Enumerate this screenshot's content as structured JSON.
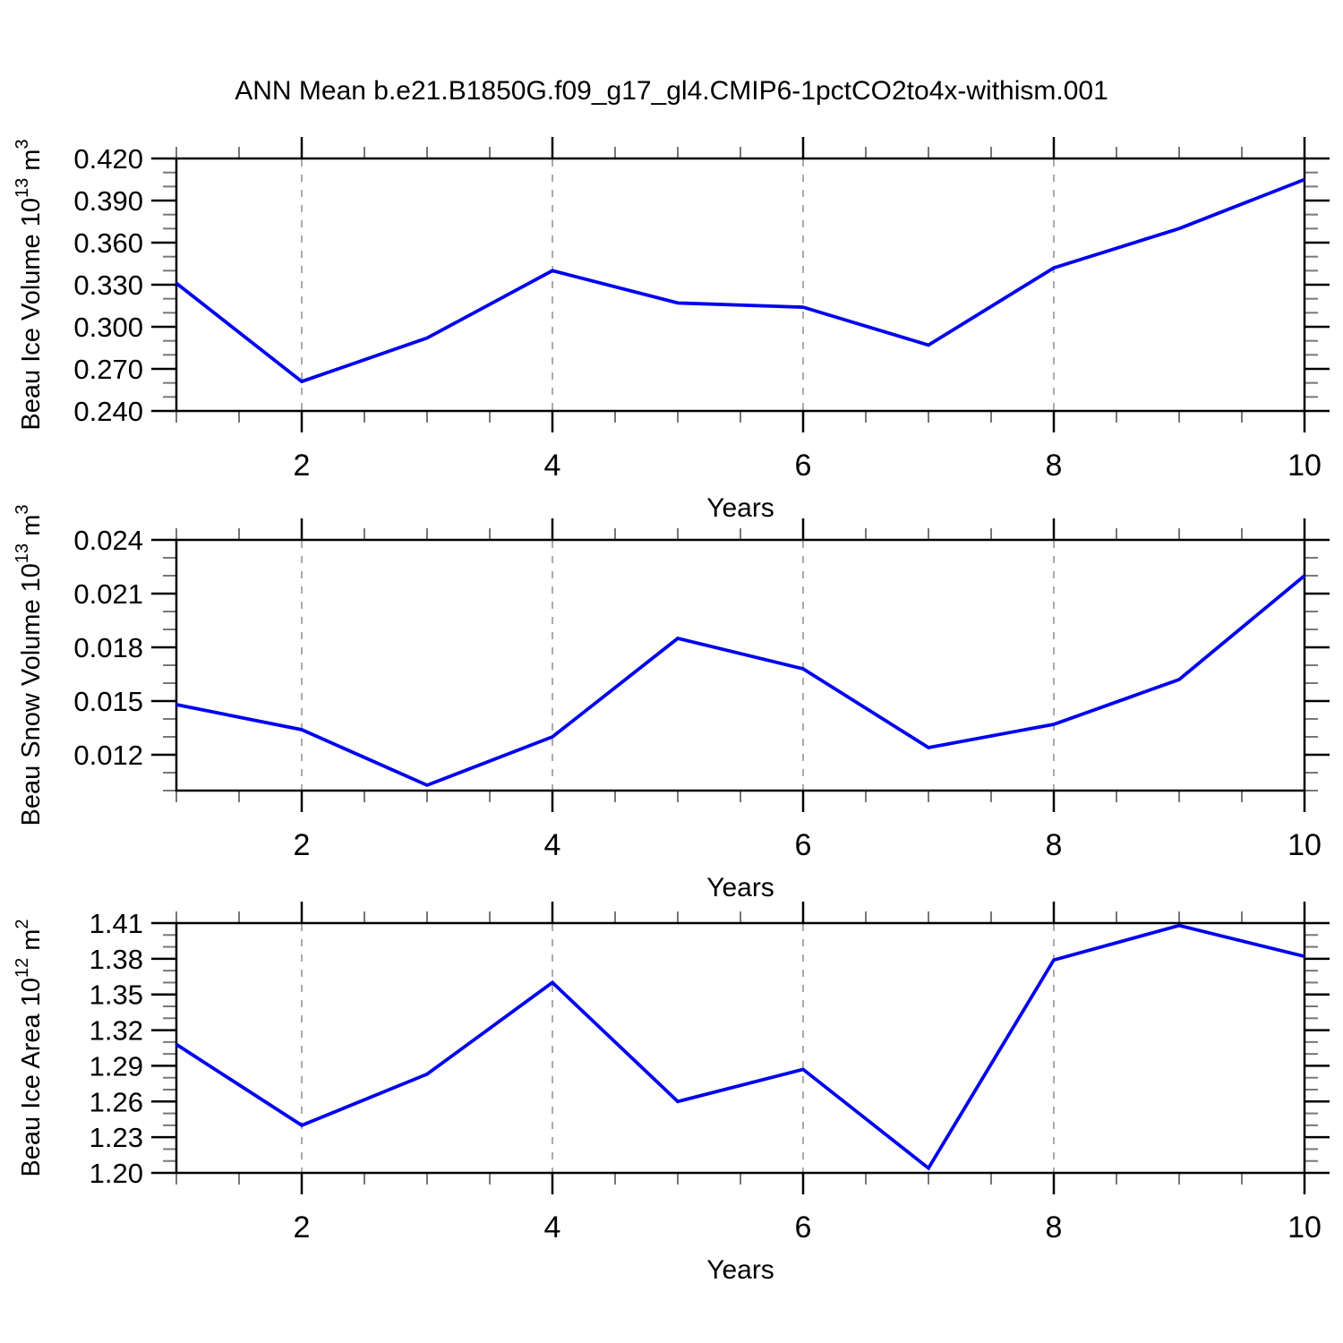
{
  "title": "ANN Mean b.e21.B1850G.f09_g17_gl4.CMIP6-1pctCO2to4x-withism.001",
  "colors": {
    "series_line": "#0000f0",
    "gridline": "#aaaaaa",
    "axis": "#000000",
    "minor_tick": "#777777",
    "background": "#ffffff"
  },
  "chart_data": [
    {
      "id": "beau-ice-volume",
      "type": "line",
      "ylabel_text": "Beau Ice Volume 10^13 m^3",
      "ylabel_parts": [
        {
          "t": "Beau Ice Volume 10"
        },
        {
          "t": "13",
          "sup": true
        },
        {
          "t": " m"
        },
        {
          "t": "3",
          "sup": true
        }
      ],
      "xlabel": "Years",
      "x": [
        1,
        2,
        3,
        4,
        5,
        6,
        7,
        8,
        9,
        10
      ],
      "values": [
        0.331,
        0.261,
        0.292,
        0.34,
        0.317,
        0.314,
        0.287,
        0.342,
        0.37,
        0.405
      ],
      "xlim": [
        1,
        10
      ],
      "ylim": [
        0.24,
        0.42
      ],
      "x_minor_step": 0.5,
      "y_minor_step": 0.01,
      "grid_x": [
        2,
        4,
        6,
        8
      ],
      "xticks": [
        {
          "v": 2,
          "label": "2"
        },
        {
          "v": 4,
          "label": "4"
        },
        {
          "v": 6,
          "label": "6"
        },
        {
          "v": 8,
          "label": "8"
        },
        {
          "v": 10,
          "label": "10"
        }
      ],
      "yticks": [
        {
          "v": 0.24,
          "label": "0.240"
        },
        {
          "v": 0.27,
          "label": "0.270"
        },
        {
          "v": 0.3,
          "label": "0.300"
        },
        {
          "v": 0.33,
          "label": "0.330"
        },
        {
          "v": 0.36,
          "label": "0.360"
        },
        {
          "v": 0.39,
          "label": "0.390"
        },
        {
          "v": 0.42,
          "label": "0.420"
        }
      ]
    },
    {
      "id": "beau-snow-volume",
      "type": "line",
      "ylabel_text": "Beau Snow Volume 10^13 m^3",
      "ylabel_parts": [
        {
          "t": "Beau Snow Volume 10"
        },
        {
          "t": "13",
          "sup": true
        },
        {
          "t": " m"
        },
        {
          "t": "3",
          "sup": true
        }
      ],
      "xlabel": "Years",
      "x": [
        1,
        2,
        3,
        4,
        5,
        6,
        7,
        8,
        9,
        10
      ],
      "values": [
        0.0148,
        0.0134,
        0.0103,
        0.013,
        0.0185,
        0.0168,
        0.0124,
        0.0137,
        0.0162,
        0.022
      ],
      "xlim": [
        1,
        10
      ],
      "ylim": [
        0.01,
        0.024
      ],
      "x_minor_step": 0.5,
      "y_minor_step": 0.001,
      "grid_x": [
        2,
        4,
        6,
        8
      ],
      "xticks": [
        {
          "v": 2,
          "label": "2"
        },
        {
          "v": 4,
          "label": "4"
        },
        {
          "v": 6,
          "label": "6"
        },
        {
          "v": 8,
          "label": "8"
        },
        {
          "v": 10,
          "label": "10"
        }
      ],
      "yticks": [
        {
          "v": 0.012,
          "label": "0.012"
        },
        {
          "v": 0.015,
          "label": "0.015"
        },
        {
          "v": 0.018,
          "label": "0.018"
        },
        {
          "v": 0.021,
          "label": "0.021"
        },
        {
          "v": 0.024,
          "label": "0.024"
        }
      ]
    },
    {
      "id": "beau-ice-area",
      "type": "line",
      "ylabel_text": "Beau Ice Area 10^12 m^2",
      "ylabel_parts": [
        {
          "t": "Beau Ice Area 10"
        },
        {
          "t": "12",
          "sup": true
        },
        {
          "t": " m"
        },
        {
          "t": "2",
          "sup": true
        }
      ],
      "xlabel": "Years",
      "x": [
        1,
        2,
        3,
        4,
        5,
        6,
        7,
        8,
        9,
        10
      ],
      "values": [
        1.308,
        1.24,
        1.283,
        1.36,
        1.26,
        1.287,
        1.204,
        1.379,
        1.408,
        1.382
      ],
      "xlim": [
        1,
        10
      ],
      "ylim": [
        1.2,
        1.41
      ],
      "x_minor_step": 0.5,
      "y_minor_step": 0.01,
      "grid_x": [
        2,
        4,
        6,
        8
      ],
      "xticks": [
        {
          "v": 2,
          "label": "2"
        },
        {
          "v": 4,
          "label": "4"
        },
        {
          "v": 6,
          "label": "6"
        },
        {
          "v": 8,
          "label": "8"
        },
        {
          "v": 10,
          "label": "10"
        }
      ],
      "yticks": [
        {
          "v": 1.2,
          "label": "1.20"
        },
        {
          "v": 1.23,
          "label": "1.23"
        },
        {
          "v": 1.26,
          "label": "1.26"
        },
        {
          "v": 1.29,
          "label": "1.29"
        },
        {
          "v": 1.32,
          "label": "1.32"
        },
        {
          "v": 1.35,
          "label": "1.35"
        },
        {
          "v": 1.38,
          "label": "1.38"
        },
        {
          "v": 1.41,
          "label": "1.41"
        }
      ]
    }
  ]
}
